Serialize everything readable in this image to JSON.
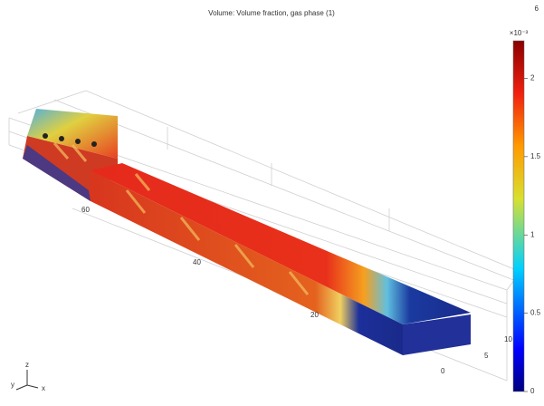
{
  "title": "Volume: Volume fraction, gas phase (1)",
  "corner_label": "6",
  "colorbar": {
    "unit": "×10⁻³",
    "range": [
      0,
      2.24
    ],
    "ticks": [
      0,
      0.5,
      1,
      1.5,
      2
    ]
  },
  "axis_labels": {
    "long": [
      "60",
      "40",
      "20"
    ],
    "short": [
      "0",
      "5",
      "10"
    ]
  },
  "triad": [
    "y",
    "z",
    "x"
  ]
}
